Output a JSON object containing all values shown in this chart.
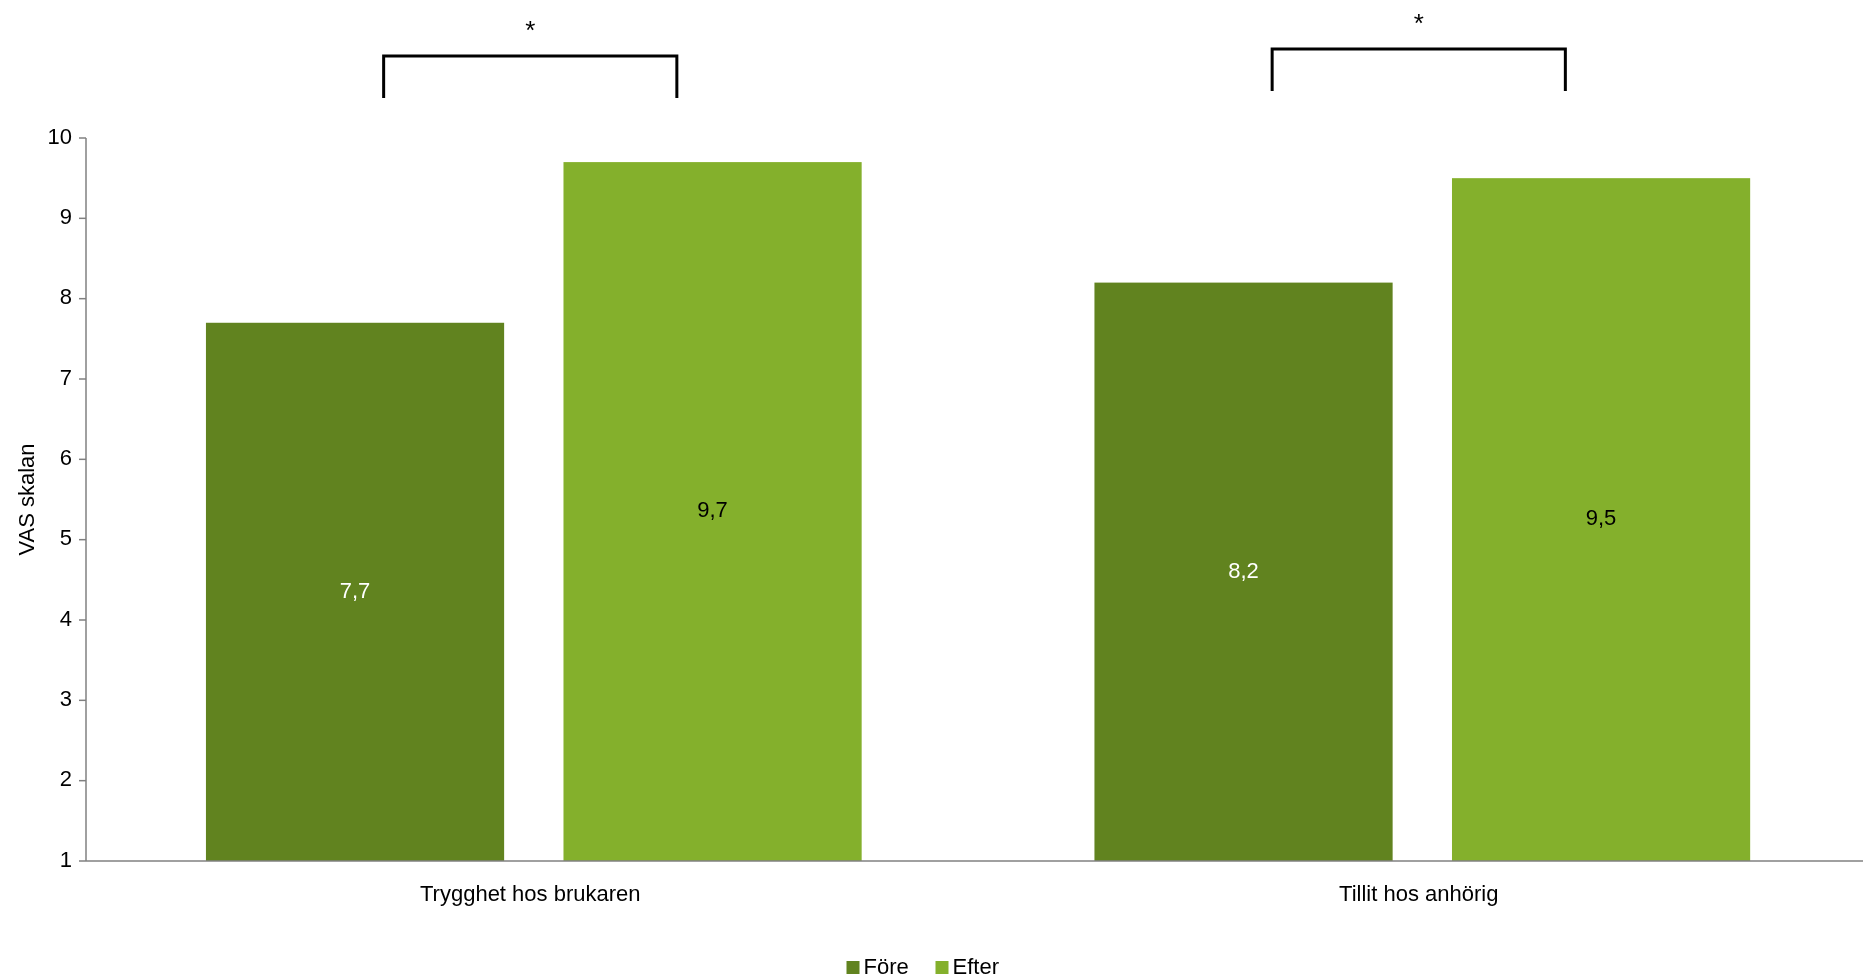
{
  "chart_data": {
    "type": "bar",
    "ylabel": "VAS skalan",
    "categories": [
      "Trygghet hos brukaren",
      "Tillit hos anhörig"
    ],
    "series": [
      {
        "name": "Före",
        "color": "#61831f",
        "values": [
          7.7,
          8.2
        ],
        "value_labels": [
          "7,7",
          "8,2"
        ]
      },
      {
        "name": "Efter",
        "color": "#84b02c",
        "values": [
          9.7,
          9.5
        ],
        "value_labels": [
          "9,7",
          "9,5"
        ]
      }
    ],
    "ylim": [
      1,
      10
    ],
    "yticks": [
      1,
      2,
      3,
      4,
      5,
      6,
      7,
      8,
      9,
      10
    ],
    "grid": false,
    "legend": "bottom",
    "annotations": [
      "*",
      "*"
    ]
  }
}
